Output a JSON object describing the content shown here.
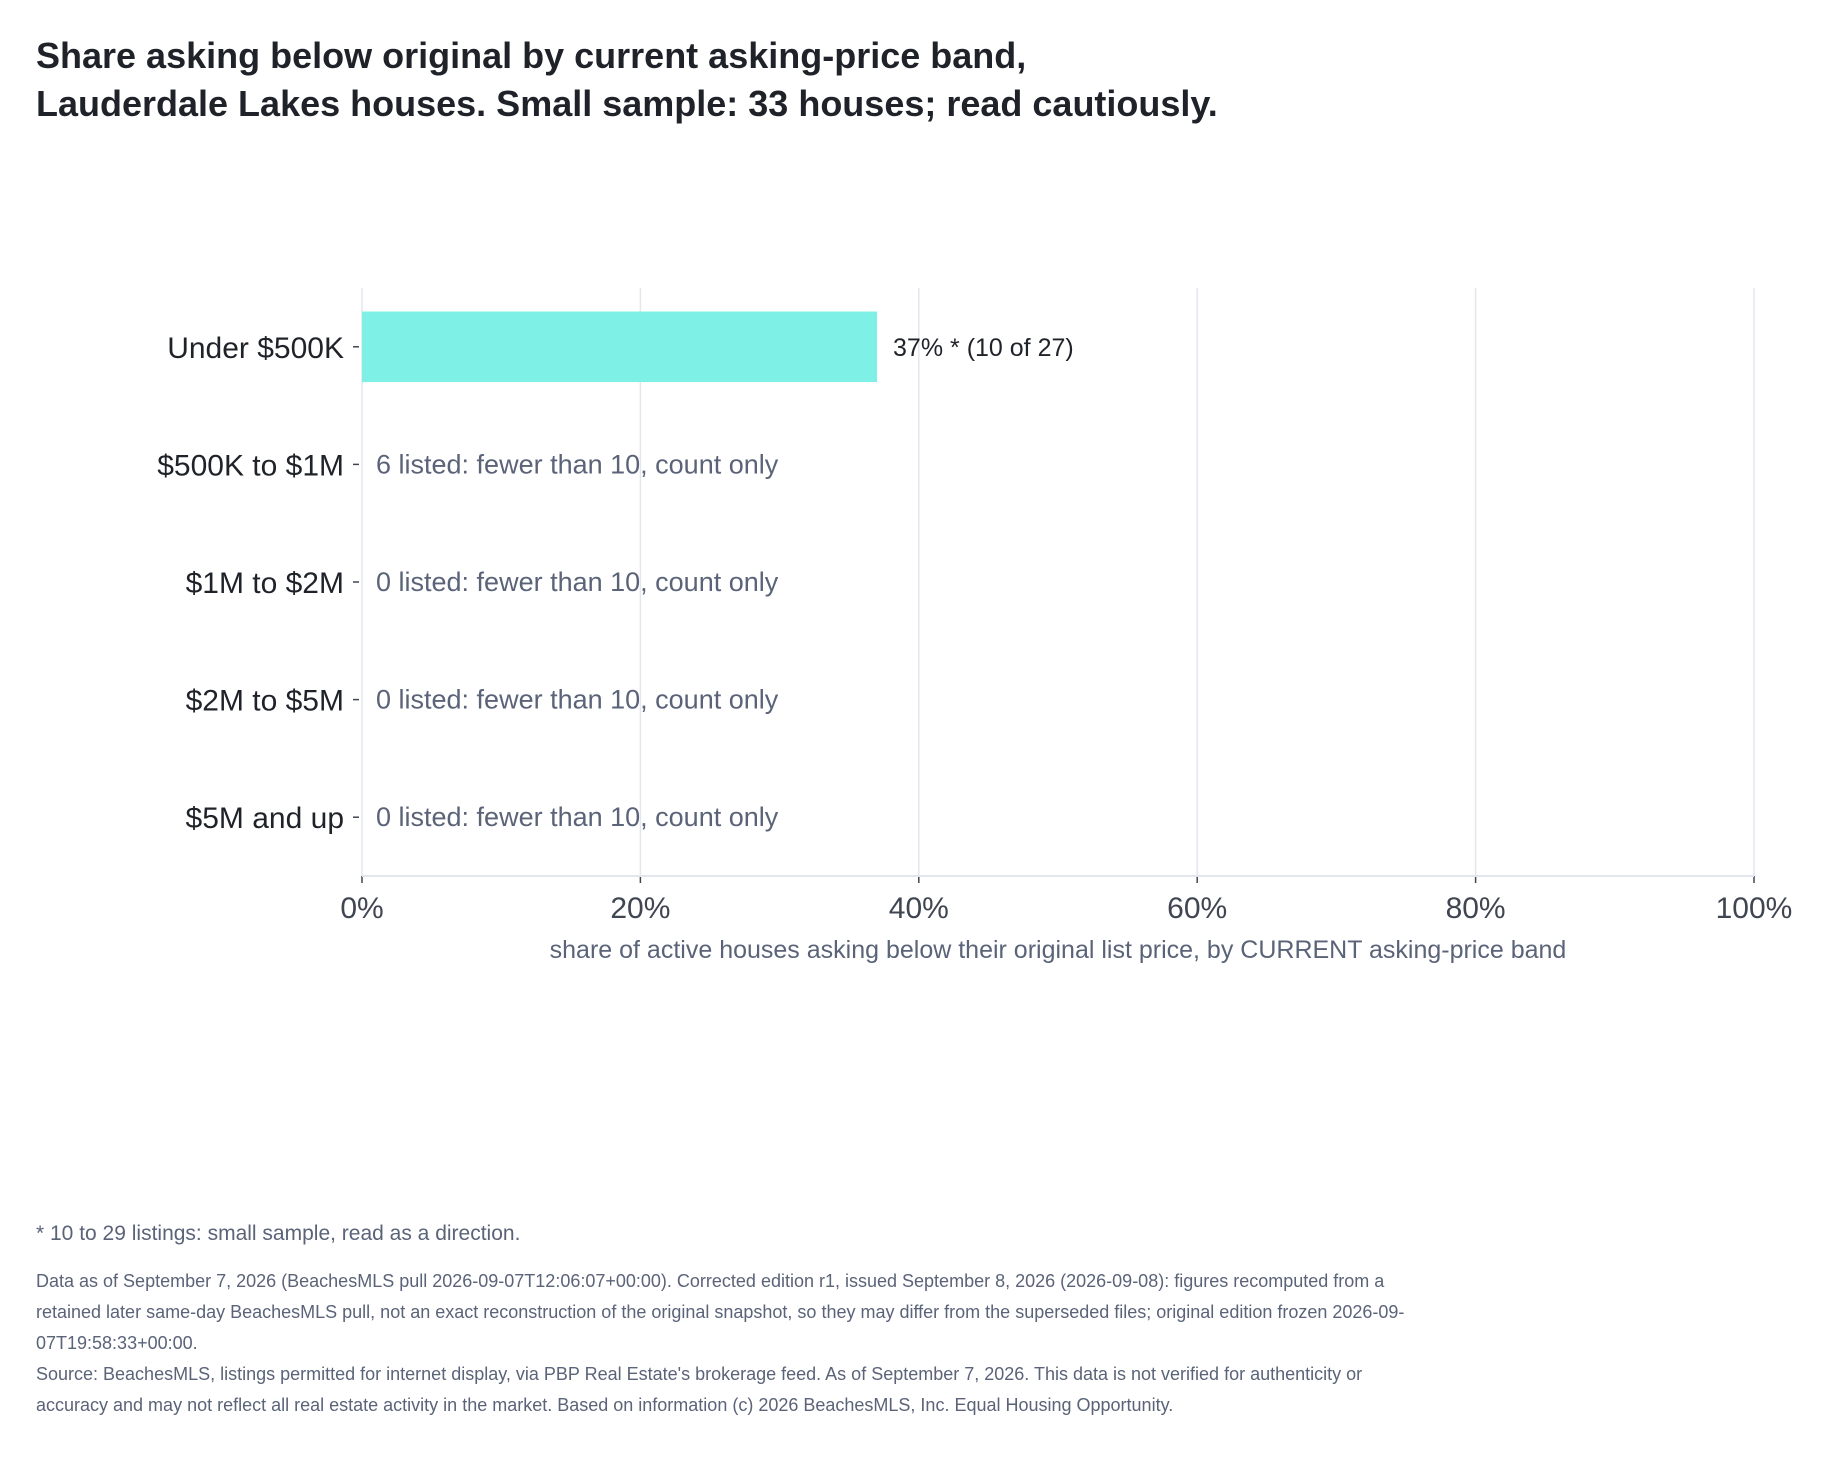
{
  "title": {
    "line1": "Share asking below original by current asking-price band,",
    "line2": "Lauderdale Lakes houses. Small sample: 33 houses; read cautiously."
  },
  "chart_data": {
    "type": "bar",
    "orientation": "horizontal",
    "categories": [
      "Under $500K",
      "$500K to $1M",
      "$1M to $2M",
      "$2M to $5M",
      "$5M and up"
    ],
    "values": [
      37,
      null,
      null,
      null,
      null
    ],
    "counts": [
      {
        "below": 10,
        "total": 27
      },
      {
        "below": null,
        "total": 6
      },
      {
        "below": null,
        "total": 0
      },
      {
        "below": null,
        "total": 0
      },
      {
        "below": null,
        "total": 0
      }
    ],
    "bar_labels": [
      "37% *  (10 of 27)",
      "6 listed: fewer than 10, count only",
      "0 listed: fewer than 10, count only",
      "0 listed: fewer than 10, count only",
      "0 listed: fewer than 10, count only"
    ],
    "xlabel": "share of active houses asking below their original list price, by CURRENT asking-price band",
    "xlim": [
      0,
      100
    ],
    "xticks": [
      0,
      20,
      40,
      60,
      80,
      100
    ],
    "xtick_labels": [
      "0%",
      "20%",
      "40%",
      "60%",
      "80%",
      "100%"
    ],
    "grid": "vertical",
    "legend": "none"
  },
  "colors": {
    "bar": "#7ef0e6",
    "grid": "#e4e6ee",
    "axis_text": "#3f4652",
    "category_text": "#1f2329",
    "muted_text": "#5a6378"
  },
  "footnote": "* 10 to 29 listings: small sample, read as a direction.",
  "notes": {
    "data_as_of": "Data as of September 7, 2026 (BeachesMLS pull 2026-09-07T12:06:07+00:00). Corrected edition r1, issued September 8, 2026 (2026-09-08): figures recomputed from a retained later same-day BeachesMLS pull, not an exact reconstruction of the original snapshot, so they may differ from the superseded files; original edition frozen 2026-09-07T19:58:33+00:00.",
    "source": "Source: BeachesMLS, listings permitted for internet display, via PBP Real Estate's brokerage feed. As of September 7, 2026. This data is not verified for authenticity or accuracy and may not reflect all real estate activity in the market. Based on information (c) 2026 BeachesMLS, Inc. Equal Housing Opportunity."
  }
}
